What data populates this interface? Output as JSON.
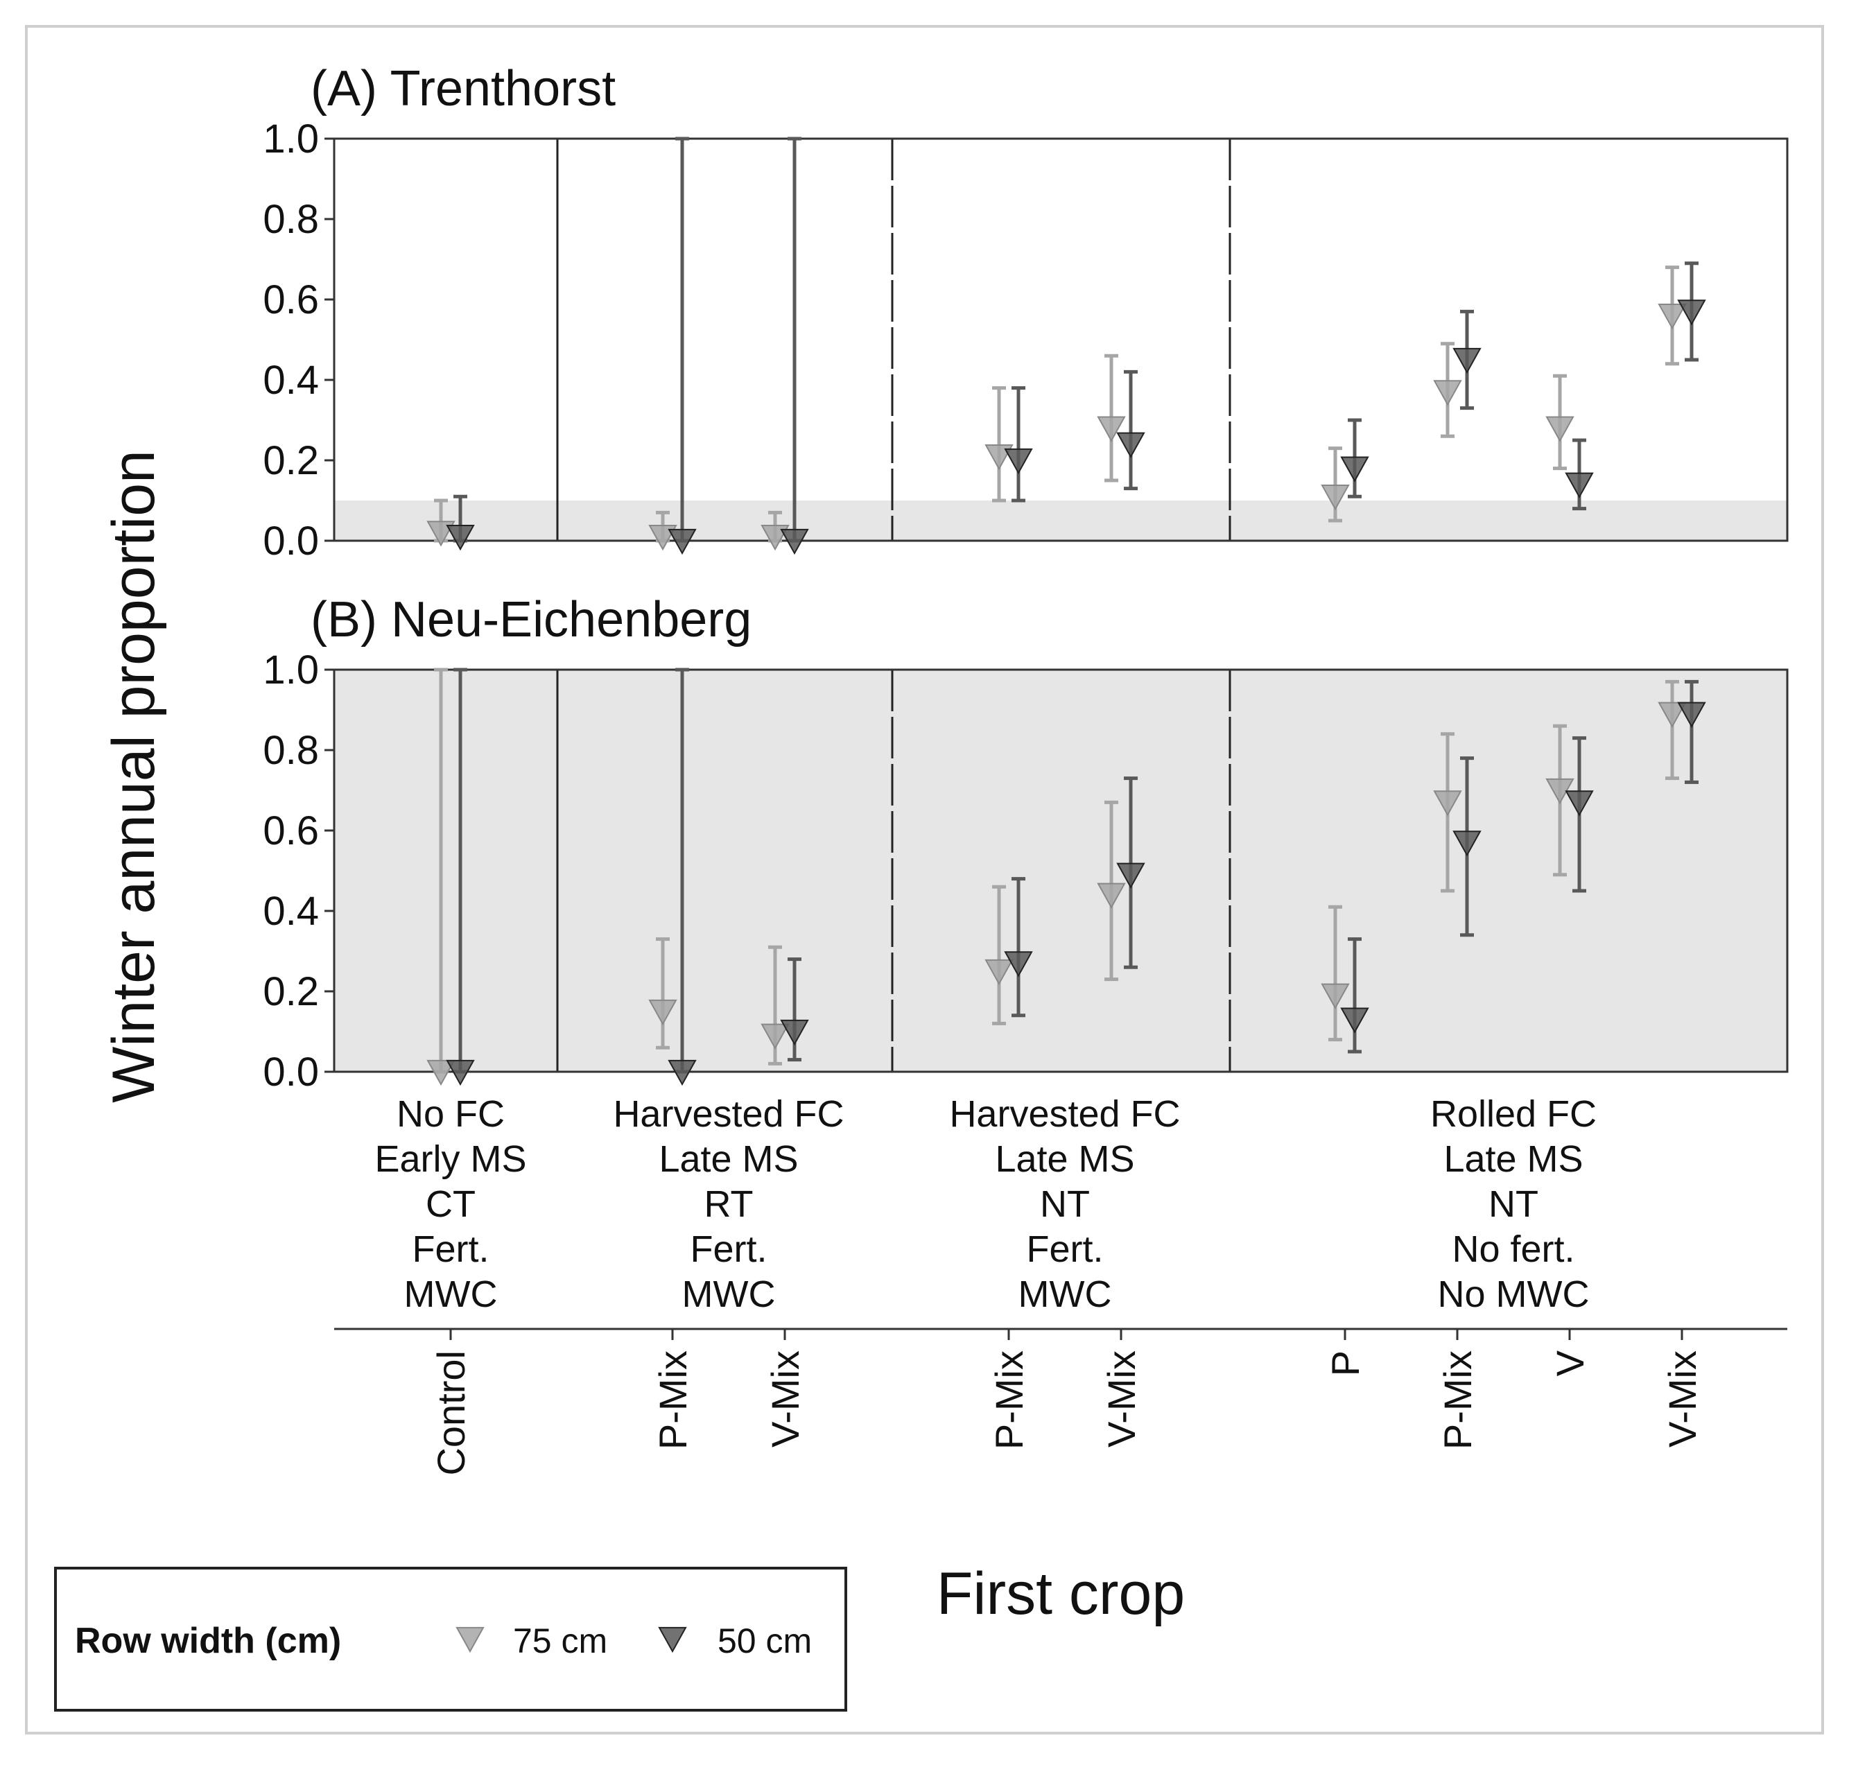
{
  "chart_data": {
    "type": "scatter",
    "ylabel": "Winter annual proportion",
    "xlabel": "First crop",
    "ylim": [
      0,
      1
    ],
    "yticks": [
      "0.0",
      "0.2",
      "0.4",
      "0.6",
      "0.8",
      "1.0"
    ],
    "categories": [
      "Control",
      "P-Mix",
      "V-Mix",
      "P-Mix",
      "V-Mix",
      "P",
      "P-Mix",
      "V",
      "V-Mix"
    ],
    "groups": [
      {
        "lines": [
          "No FC",
          "Early MS",
          "CT",
          "Fert.",
          "MWC"
        ],
        "categories": [
          0
        ]
      },
      {
        "lines": [
          "Harvested FC",
          "Late MS",
          "RT",
          "Fert.",
          "MWC"
        ],
        "categories": [
          1,
          2
        ]
      },
      {
        "lines": [
          "Harvested FC",
          "Late MS",
          "NT",
          "Fert.",
          "MWC"
        ],
        "categories": [
          3,
          4
        ]
      },
      {
        "lines": [
          "Rolled FC",
          "Late MS",
          "NT",
          "No fert.",
          "No MWC"
        ],
        "categories": [
          5,
          6,
          7,
          8
        ]
      }
    ],
    "legend": {
      "title": "Row width (cm)",
      "position": "bottom-left"
    },
    "series": [
      {
        "name": "75 cm",
        "color": "#a6a6a6"
      },
      {
        "name": "50 cm",
        "color": "#595959"
      }
    ],
    "panels": [
      {
        "title": "(A) Trenthorst",
        "shade_range": [
          0,
          0.1
        ],
        "points": {
          "75 cm": [
            {
              "value": 0.02,
              "lo": 0.0,
              "hi": 0.1
            },
            {
              "value": 0.01,
              "lo": 0.0,
              "hi": 0.07
            },
            {
              "value": 0.01,
              "lo": 0.0,
              "hi": 0.07
            },
            {
              "value": 0.21,
              "lo": 0.1,
              "hi": 0.38
            },
            {
              "value": 0.28,
              "lo": 0.15,
              "hi": 0.46
            },
            {
              "value": 0.11,
              "lo": 0.05,
              "hi": 0.23
            },
            {
              "value": 0.37,
              "lo": 0.26,
              "hi": 0.49
            },
            {
              "value": 0.28,
              "lo": 0.18,
              "hi": 0.41
            },
            {
              "value": 0.56,
              "lo": 0.44,
              "hi": 0.68
            }
          ],
          "50 cm": [
            {
              "value": 0.01,
              "lo": 0.0,
              "hi": 0.11
            },
            {
              "value": 0.0,
              "lo": 0.0,
              "hi": 1.0
            },
            {
              "value": 0.0,
              "lo": 0.0,
              "hi": 1.0
            },
            {
              "value": 0.2,
              "lo": 0.1,
              "hi": 0.38
            },
            {
              "value": 0.24,
              "lo": 0.13,
              "hi": 0.42
            },
            {
              "value": 0.18,
              "lo": 0.11,
              "hi": 0.3
            },
            {
              "value": 0.45,
              "lo": 0.33,
              "hi": 0.57
            },
            {
              "value": 0.14,
              "lo": 0.08,
              "hi": 0.25
            },
            {
              "value": 0.57,
              "lo": 0.45,
              "hi": 0.69
            }
          ]
        }
      },
      {
        "title": "(B) Neu-Eichenberg",
        "shade_range": [
          0,
          1
        ],
        "points": {
          "75 cm": [
            {
              "value": 0.0,
              "lo": 0.0,
              "hi": 1.0
            },
            {
              "value": 0.15,
              "lo": 0.06,
              "hi": 0.33
            },
            {
              "value": 0.09,
              "lo": 0.02,
              "hi": 0.31
            },
            {
              "value": 0.25,
              "lo": 0.12,
              "hi": 0.46
            },
            {
              "value": 0.44,
              "lo": 0.23,
              "hi": 0.67
            },
            {
              "value": 0.19,
              "lo": 0.08,
              "hi": 0.41
            },
            {
              "value": 0.67,
              "lo": 0.45,
              "hi": 0.84
            },
            {
              "value": 0.7,
              "lo": 0.49,
              "hi": 0.86
            },
            {
              "value": 0.89,
              "lo": 0.73,
              "hi": 0.97
            }
          ],
          "50 cm": [
            {
              "value": 0.0,
              "lo": 0.0,
              "hi": 1.0
            },
            {
              "value": 0.0,
              "lo": 0.0,
              "hi": 1.0
            },
            {
              "value": 0.1,
              "lo": 0.03,
              "hi": 0.28
            },
            {
              "value": 0.27,
              "lo": 0.14,
              "hi": 0.48
            },
            {
              "value": 0.49,
              "lo": 0.26,
              "hi": 0.73
            },
            {
              "value": 0.13,
              "lo": 0.05,
              "hi": 0.33
            },
            {
              "value": 0.57,
              "lo": 0.34,
              "hi": 0.78
            },
            {
              "value": 0.67,
              "lo": 0.45,
              "hi": 0.83
            },
            {
              "value": 0.89,
              "lo": 0.72,
              "hi": 0.97
            }
          ]
        }
      }
    ]
  }
}
